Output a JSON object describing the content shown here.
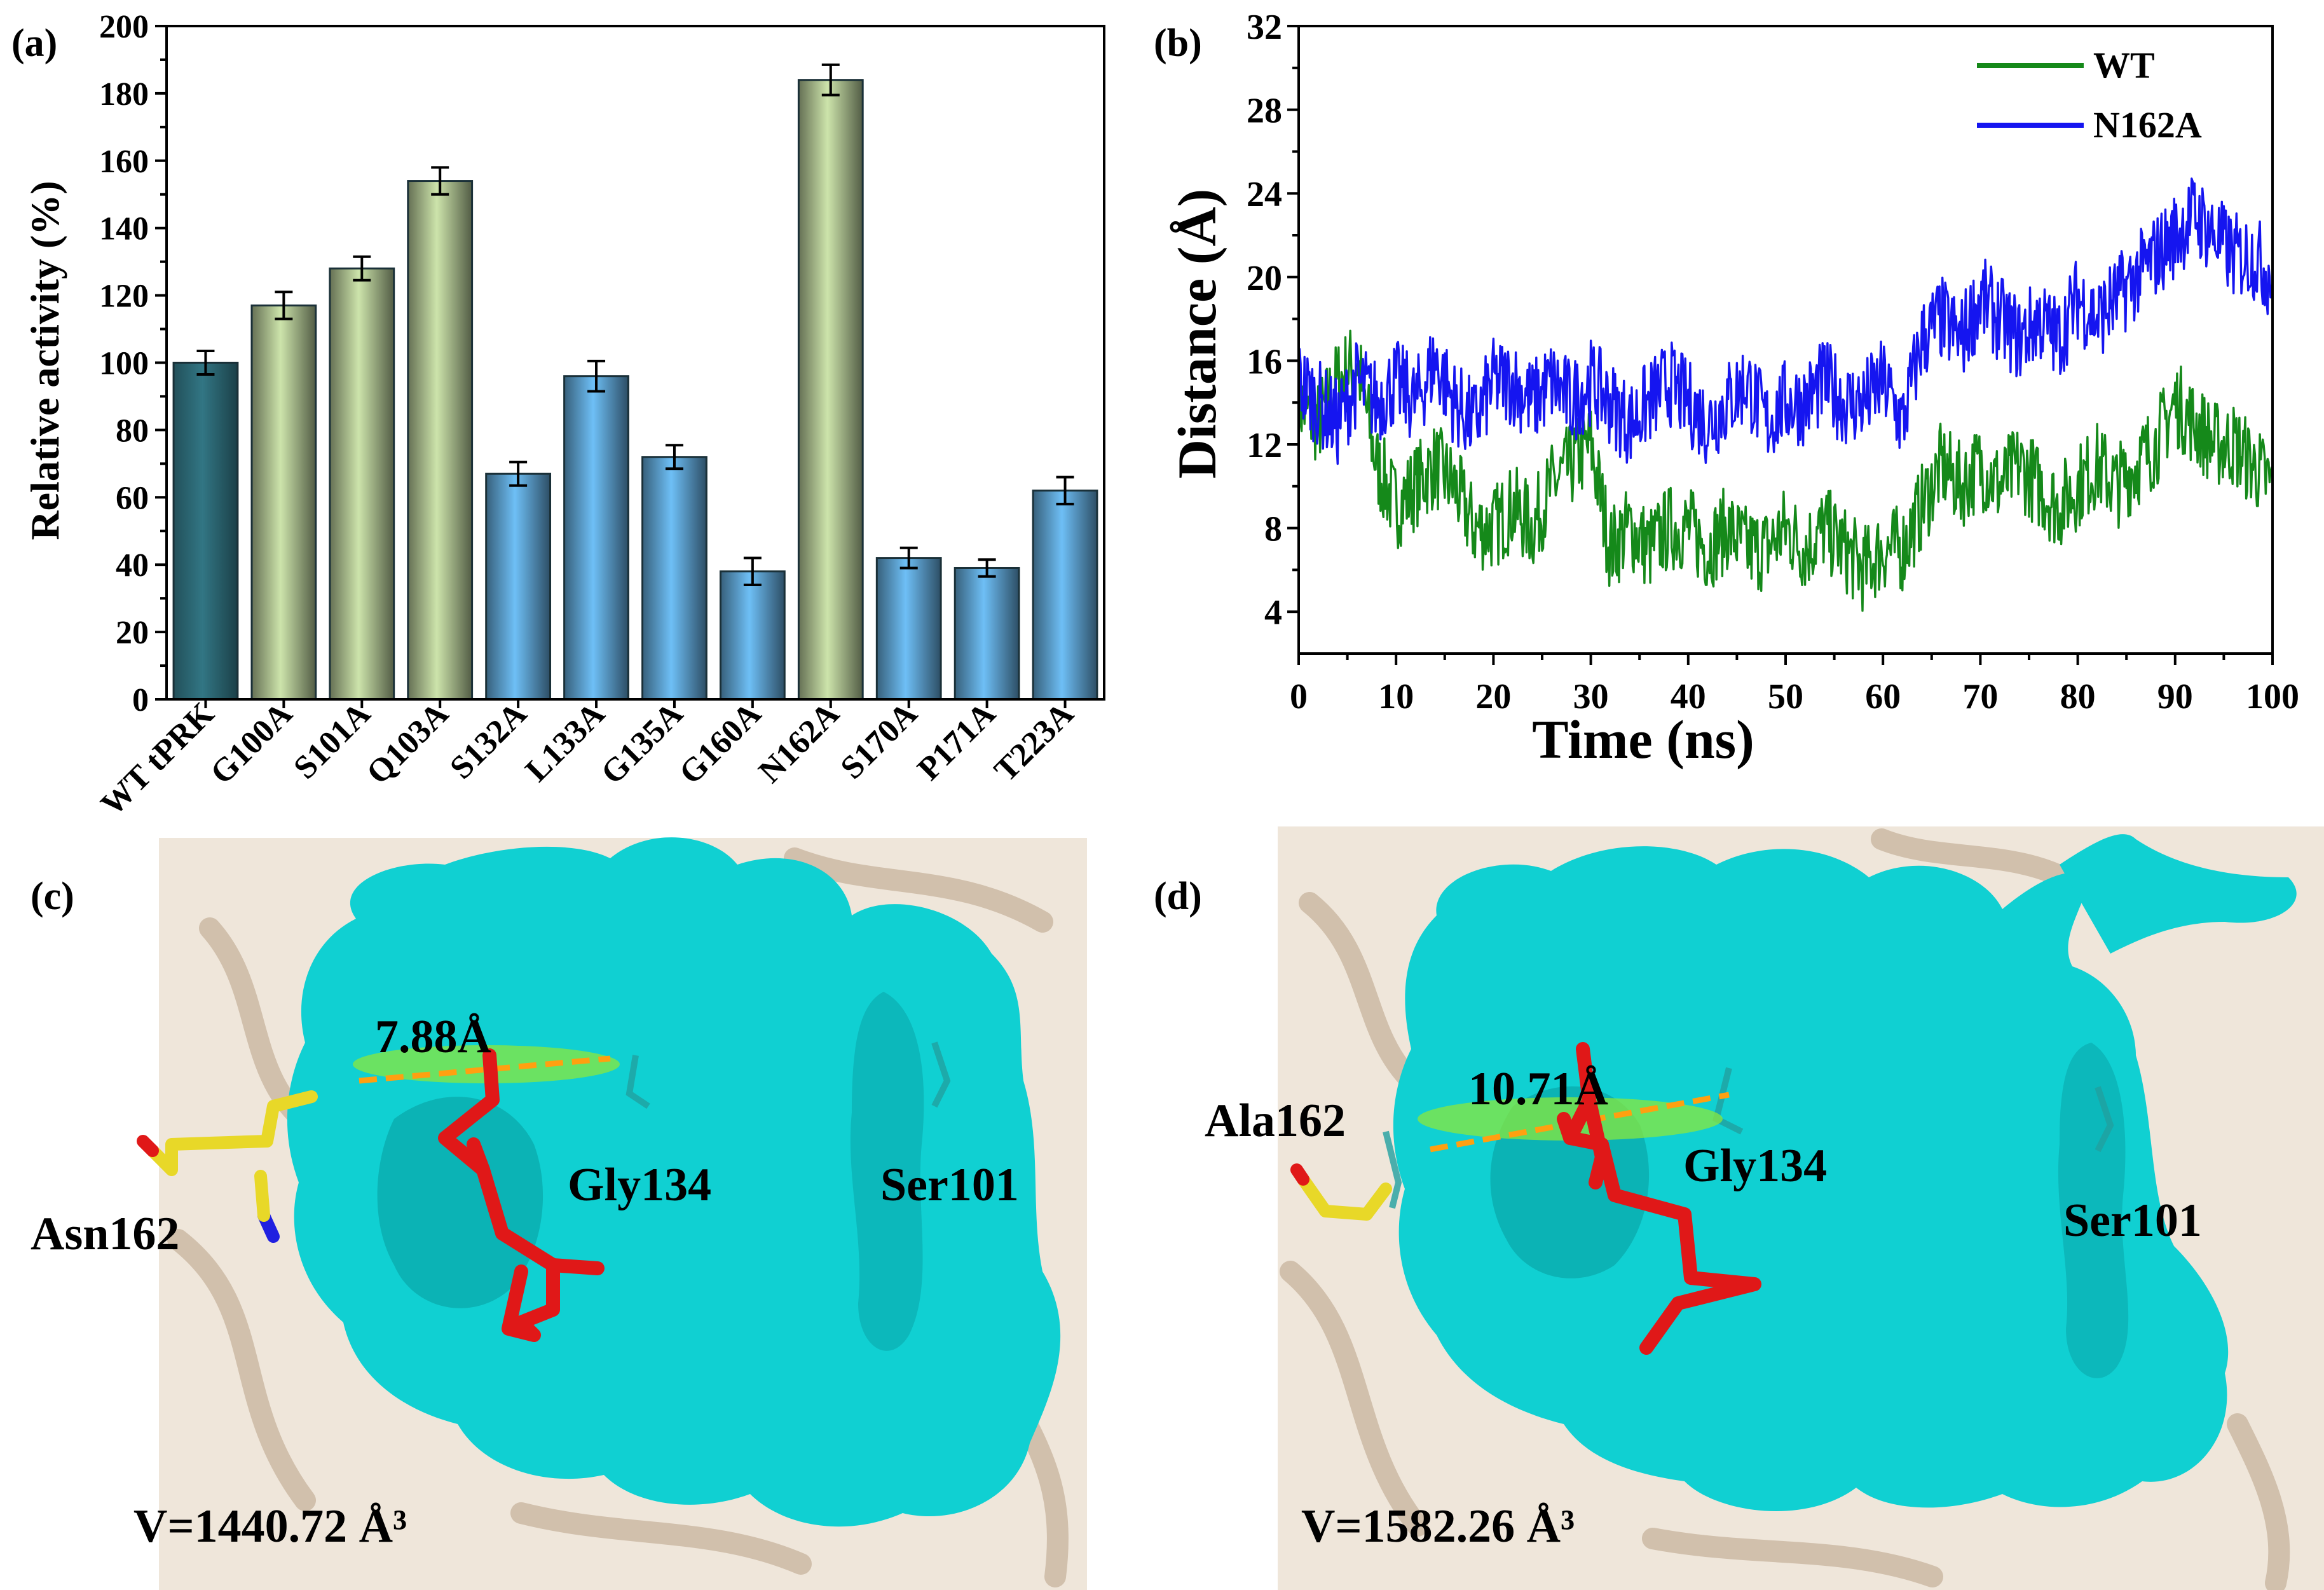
{
  "panels": {
    "a": {
      "label": "(a)"
    },
    "b": {
      "label": "(b)"
    },
    "c": {
      "label": "(c)",
      "distance": "7.88Å",
      "residue_mut": "Asn162",
      "residue_gly": "Gly134",
      "residue_ser": "Ser101",
      "volume": "V=1440.72 Å³"
    },
    "d": {
      "label": "(d)",
      "distance": "10.71Å",
      "residue_mut": "Ala162",
      "residue_gly": "Gly134",
      "residue_ser": "Ser101",
      "volume": "V=1582.26 Å³"
    }
  },
  "colors": {
    "wt_bar": "#2d6b78",
    "green_bar": "#b7cc99",
    "blue_bar": "#64aee0",
    "wt_line": "#15891a",
    "n162a_line": "#1515f0",
    "surface": "#10d0d2",
    "ligand": "#e01818",
    "mut_residue": "#e8d828"
  },
  "chart_data": [
    {
      "type": "bar",
      "categories": [
        "WT tPRK",
        "G100A",
        "S101A",
        "Q103A",
        "S132A",
        "L133A",
        "G135A",
        "G160A",
        "N162A",
        "S170A",
        "P171A",
        "T223A"
      ],
      "values": [
        100,
        117,
        128,
        154,
        67,
        96,
        72,
        38,
        184,
        42,
        39,
        62
      ],
      "errors": [
        3.5,
        4,
        3.5,
        4,
        3.5,
        4.5,
        3.5,
        4,
        4.5,
        3,
        2.5,
        4
      ],
      "bar_colors": [
        "wt_bar",
        "green_bar",
        "green_bar",
        "green_bar",
        "blue_bar",
        "blue_bar",
        "blue_bar",
        "blue_bar",
        "green_bar",
        "blue_bar",
        "blue_bar",
        "blue_bar"
      ],
      "ylabel": "Relative activity (%)",
      "xlabel": "",
      "ylim": [
        0,
        200
      ],
      "yticks": [
        0,
        20,
        40,
        60,
        80,
        100,
        120,
        140,
        160,
        180,
        200
      ]
    },
    {
      "type": "line",
      "xlabel": "Time (ns)",
      "ylabel": "Distance (Å)",
      "xlim": [
        0,
        100
      ],
      "ylim": [
        2,
        32
      ],
      "xticks": [
        0,
        10,
        20,
        30,
        40,
        50,
        60,
        70,
        80,
        90,
        100
      ],
      "yticks": [
        4,
        8,
        12,
        16,
        20,
        24,
        28,
        32
      ],
      "legend": "top-right",
      "series": [
        {
          "name": "WT",
          "color_key": "wt_line",
          "x": [
            0,
            2,
            4,
            6,
            8,
            10,
            12,
            14,
            16,
            18,
            20,
            22,
            24,
            26,
            28,
            30,
            32,
            34,
            36,
            38,
            40,
            42,
            44,
            46,
            48,
            50,
            52,
            54,
            56,
            58,
            60,
            62,
            64,
            66,
            68,
            70,
            72,
            74,
            76,
            78,
            80,
            82,
            84,
            86,
            88,
            90,
            92,
            94,
            96,
            98,
            100
          ],
          "y": [
            14,
            13,
            15,
            16,
            11,
            9,
            10,
            11,
            10,
            8,
            8,
            9,
            8,
            10,
            11,
            12,
            7,
            8,
            7,
            8,
            8,
            7,
            8,
            7,
            7,
            8,
            7,
            8,
            7,
            6,
            7,
            7,
            9,
            11,
            10,
            11,
            10,
            11,
            10,
            9,
            10,
            11,
            10,
            11,
            12,
            14,
            13,
            12,
            12,
            11,
            10
          ]
        },
        {
          "name": "N162A",
          "color_key": "n162a_line",
          "x": [
            0,
            2,
            4,
            6,
            8,
            10,
            12,
            14,
            16,
            18,
            20,
            22,
            24,
            26,
            28,
            30,
            32,
            34,
            36,
            38,
            40,
            42,
            44,
            46,
            48,
            50,
            52,
            54,
            56,
            58,
            60,
            62,
            64,
            66,
            68,
            70,
            72,
            74,
            76,
            78,
            80,
            82,
            84,
            86,
            88,
            90,
            92,
            94,
            96,
            98,
            100
          ],
          "y": [
            15,
            14,
            13,
            15,
            14,
            15,
            14,
            16,
            14,
            13,
            15,
            15,
            14,
            15,
            14,
            15,
            14,
            13,
            14,
            15,
            14,
            13,
            14,
            15,
            13,
            14,
            14,
            15,
            14,
            14,
            15,
            13,
            17,
            18,
            17,
            19,
            18,
            17,
            18,
            17,
            19,
            18,
            19,
            20,
            21,
            22,
            23,
            22,
            21,
            21,
            20
          ]
        }
      ]
    }
  ]
}
